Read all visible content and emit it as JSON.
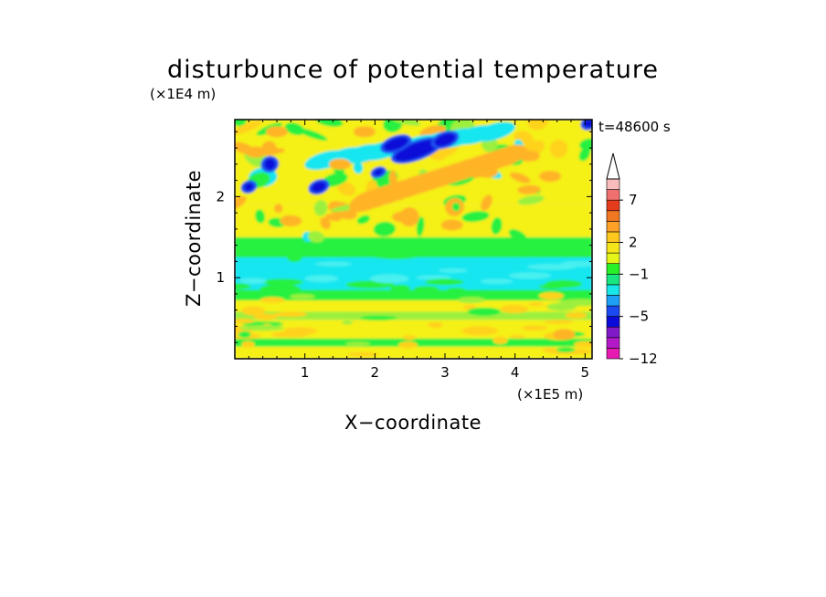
{
  "chart_data": {
    "type": "heatmap",
    "title": "disturbunce of potential temperature",
    "xlabel": "X−coordinate",
    "ylabel": "Z−coordinate",
    "x_unit": "(×1E5 m)",
    "y_unit": "(×1E4 m)",
    "time_label": "t=48600 s",
    "xlim": [
      0,
      5.1
    ],
    "ylim": [
      0,
      2.95
    ],
    "x_ticks": [
      1,
      2,
      3,
      4,
      5
    ],
    "x_tick_labels": [
      "1",
      "2",
      "3",
      "4",
      "5"
    ],
    "y_ticks": [
      1,
      2
    ],
    "y_tick_labels": [
      "1",
      "2"
    ],
    "colorbar": {
      "levels": [
        -12,
        -11,
        -9,
        -7,
        -5,
        -4,
        -3,
        -2,
        -1,
        0,
        1,
        2,
        3,
        4,
        5,
        7,
        9,
        11
      ],
      "tick_values": [
        -12,
        -5,
        -1,
        2,
        7
      ],
      "tick_labels": [
        "−12",
        "−5",
        "−1",
        "2",
        "7"
      ],
      "colors": [
        "#e619b3",
        "#b319c8",
        "#8019c8",
        "#0b0bd9",
        "#1a4af0",
        "#1ea0f5",
        "#19e6e6",
        "#19e680",
        "#28f028",
        "#e6f519",
        "#f5e619",
        "#ffc81e",
        "#ffa028",
        "#f07823",
        "#e63c1e",
        "#f0706e",
        "#f8bcbc"
      ],
      "extend_top_color": "#ffffff"
    },
    "field_bands": [
      {
        "z": [
          0.0,
          0.15
        ],
        "level": "yellow"
      },
      {
        "z": [
          0.15,
          0.25
        ],
        "level": "green"
      },
      {
        "z": [
          0.25,
          0.48
        ],
        "level": "yellow"
      },
      {
        "z": [
          0.48,
          0.58
        ],
        "level": "lightgreen"
      },
      {
        "z": [
          0.58,
          0.72
        ],
        "level": "yellow"
      },
      {
        "z": [
          0.72,
          0.85
        ],
        "level": "green"
      },
      {
        "z": [
          0.85,
          1.25
        ],
        "level": "cyan"
      },
      {
        "z": [
          1.25,
          1.5
        ],
        "level": "green"
      },
      {
        "z": [
          1.5,
          1.9
        ],
        "level": "yellow"
      },
      {
        "z": [
          1.9,
          2.95
        ],
        "level": "mixed"
      }
    ]
  }
}
